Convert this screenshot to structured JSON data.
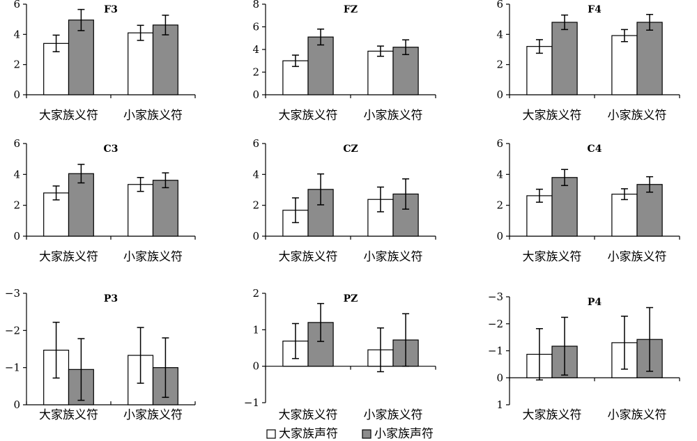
{
  "legend": {
    "position": "bottom-center",
    "entries": [
      {
        "label": "大家族声符",
        "color": "#ffffff"
      },
      {
        "label": "小家族声符",
        "color": "#8c8c8c"
      }
    ]
  },
  "chart_data": [
    {
      "type": "bar",
      "title": "F3",
      "ylim": [
        0,
        6
      ],
      "ticks": [
        0,
        2,
        4,
        6
      ],
      "inverted": false,
      "categories": [
        "大家族义符",
        "小家族义符"
      ],
      "series": [
        {
          "name": "大家族声符",
          "values": [
            3.4,
            4.1
          ],
          "errors": [
            0.55,
            0.5
          ]
        },
        {
          "name": "小家族声符",
          "values": [
            4.95,
            4.62
          ],
          "errors": [
            0.7,
            0.65
          ]
        }
      ]
    },
    {
      "type": "bar",
      "title": "FZ",
      "ylim": [
        0,
        8
      ],
      "ticks": [
        0,
        2,
        4,
        6,
        8
      ],
      "inverted": false,
      "categories": [
        "大家族义符",
        "小家族义符"
      ],
      "series": [
        {
          "name": "大家族声符",
          "values": [
            3.0,
            3.85
          ],
          "errors": [
            0.5,
            0.45
          ]
        },
        {
          "name": "小家族声符",
          "values": [
            5.1,
            4.2
          ],
          "errors": [
            0.7,
            0.65
          ]
        }
      ]
    },
    {
      "type": "bar",
      "title": "F4",
      "ylim": [
        0,
        6
      ],
      "ticks": [
        0,
        2,
        4,
        6
      ],
      "inverted": false,
      "categories": [
        "大家族义符",
        "小家族义符"
      ],
      "series": [
        {
          "name": "大家族声符",
          "values": [
            3.2,
            3.92
          ],
          "errors": [
            0.45,
            0.4
          ]
        },
        {
          "name": "小家族声符",
          "values": [
            4.8,
            4.8
          ],
          "errors": [
            0.48,
            0.52
          ]
        }
      ]
    },
    {
      "type": "bar",
      "title": "C3",
      "ylim": [
        0,
        6
      ],
      "ticks": [
        0,
        2,
        4,
        6
      ],
      "inverted": false,
      "categories": [
        "大家族义符",
        "小家族义符"
      ],
      "series": [
        {
          "name": "大家族声符",
          "values": [
            2.8,
            3.35
          ],
          "errors": [
            0.45,
            0.45
          ]
        },
        {
          "name": "小家族声符",
          "values": [
            4.05,
            3.62
          ],
          "errors": [
            0.6,
            0.48
          ]
        }
      ]
    },
    {
      "type": "bar",
      "title": "CZ",
      "ylim": [
        0,
        6
      ],
      "ticks": [
        0,
        2,
        4,
        6
      ],
      "inverted": false,
      "categories": [
        "大家族义符",
        "小家族义符"
      ],
      "series": [
        {
          "name": "大家族声符",
          "values": [
            1.68,
            2.38
          ],
          "errors": [
            0.8,
            0.8
          ]
        },
        {
          "name": "小家族声符",
          "values": [
            3.03,
            2.73
          ],
          "errors": [
            1.0,
            0.98
          ]
        }
      ]
    },
    {
      "type": "bar",
      "title": "C4",
      "ylim": [
        0,
        6
      ],
      "ticks": [
        0,
        2,
        4,
        6
      ],
      "inverted": false,
      "categories": [
        "大家族义符",
        "小家族义符"
      ],
      "series": [
        {
          "name": "大家族声符",
          "values": [
            2.62,
            2.72
          ],
          "errors": [
            0.42,
            0.35
          ]
        },
        {
          "name": "小家族声符",
          "values": [
            3.8,
            3.35
          ],
          "errors": [
            0.52,
            0.5
          ]
        }
      ]
    },
    {
      "type": "bar",
      "title": "P3",
      "ylim": [
        0,
        -3
      ],
      "ticks": [
        0,
        -1,
        -2,
        -3
      ],
      "inverted": false,
      "categories": [
        "大家族义符",
        "小家族义符"
      ],
      "series": [
        {
          "name": "大家族声符",
          "values": [
            -1.47,
            -1.33
          ],
          "errors": [
            0.75,
            0.75
          ]
        },
        {
          "name": "小家族声符",
          "values": [
            -0.95,
            -1.0
          ],
          "errors": [
            0.83,
            0.8
          ]
        }
      ]
    },
    {
      "type": "bar",
      "title": "PZ",
      "ylim": [
        -1,
        2
      ],
      "ticks": [
        -1,
        0,
        1,
        2
      ],
      "inverted": false,
      "categories": [
        "大家族义符",
        "小家族义符"
      ],
      "series": [
        {
          "name": "大家族声符",
          "values": [
            0.69,
            0.45
          ],
          "errors": [
            0.48,
            0.6
          ]
        },
        {
          "name": "小家族声符",
          "values": [
            1.2,
            0.72
          ],
          "errors": [
            0.52,
            0.72
          ]
        }
      ]
    },
    {
      "type": "bar",
      "title": "P4",
      "ylim": [
        1,
        -3
      ],
      "ticks": [
        -3,
        -2,
        -1,
        0,
        1
      ],
      "inverted": true,
      "categories": [
        "大家族义符",
        "小家族义符"
      ],
      "series": [
        {
          "name": "大家族声符",
          "values": [
            -0.87,
            -1.3
          ],
          "errors": [
            0.95,
            0.98
          ]
        },
        {
          "name": "小家族声符",
          "values": [
            -1.17,
            -1.42
          ],
          "errors": [
            1.07,
            1.18
          ]
        }
      ]
    }
  ]
}
